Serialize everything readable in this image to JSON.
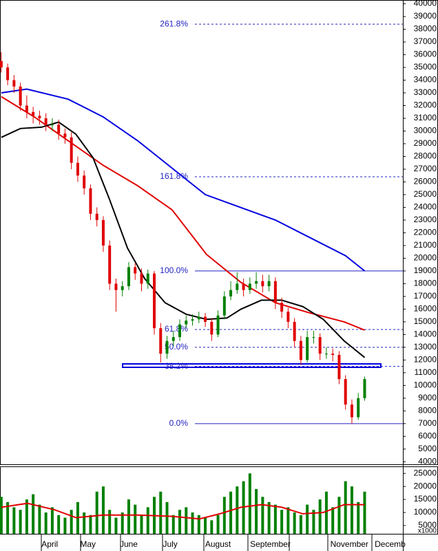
{
  "chart_data": [
    {
      "type": "candlestick",
      "x": [
        0,
        1,
        2,
        3,
        4,
        5,
        6,
        7,
        8,
        9,
        10,
        11,
        12,
        13,
        14,
        15,
        16,
        17,
        18,
        19,
        20,
        21,
        22,
        23,
        24,
        25,
        26,
        27,
        28,
        29,
        30,
        31,
        32,
        33,
        34,
        35,
        36,
        37,
        38,
        39,
        40,
        41,
        42,
        43,
        44,
        45,
        46,
        47,
        48,
        49,
        50,
        51,
        52,
        53,
        54,
        55,
        56,
        57
      ],
      "open": [
        35500,
        35000,
        34000,
        33500,
        32000,
        31500,
        31200,
        31000,
        30500,
        30500,
        29800,
        29500,
        27500,
        26500,
        25500,
        23500,
        23000,
        21000,
        18000,
        17500,
        17800,
        19300,
        18800,
        18000,
        18800,
        14500,
        12500,
        13500,
        13800,
        14800,
        15100,
        15200,
        15400,
        15000,
        14000,
        15500,
        17000,
        17500,
        18000,
        17500,
        18000,
        18200,
        17800,
        18200,
        16500,
        15800,
        15000,
        13500,
        12000,
        13800,
        13800,
        12500,
        12500,
        12400,
        10500,
        8500,
        7500,
        9000
      ],
      "high": [
        36200,
        35300,
        34400,
        33800,
        32800,
        31900,
        31600,
        31400,
        31000,
        30900,
        30200,
        29900,
        28000,
        26900,
        25800,
        24000,
        23300,
        21400,
        18400,
        18200,
        19700,
        19600,
        19200,
        19100,
        19000,
        14900,
        13900,
        14300,
        15200,
        15500,
        15600,
        15800,
        15700,
        15300,
        15900,
        17400,
        18200,
        18900,
        18400,
        18500,
        18900,
        18700,
        18700,
        18500,
        16900,
        16100,
        15300,
        13900,
        14300,
        14300,
        14100,
        13000,
        12900,
        12700,
        10800,
        8900,
        9400,
        10700
      ],
      "low": [
        34600,
        33600,
        33000,
        31600,
        31000,
        30600,
        30500,
        30000,
        30000,
        29300,
        29000,
        27000,
        26000,
        25000,
        23000,
        22500,
        20500,
        17500,
        15800,
        17000,
        17500,
        18300,
        17400,
        17600,
        14000,
        11800,
        12100,
        13100,
        13500,
        14500,
        14700,
        14900,
        14600,
        13500,
        13800,
        15200,
        16700,
        17200,
        17000,
        17200,
        17600,
        17300,
        17400,
        16000,
        15300,
        14500,
        13000,
        11600,
        11800,
        13300,
        12000,
        12100,
        11900,
        10100,
        8100,
        7000,
        7300,
        8800
      ],
      "close": [
        35000,
        34000,
        33500,
        32000,
        31500,
        31200,
        31000,
        30500,
        30500,
        29800,
        29500,
        27500,
        26500,
        25500,
        23500,
        23000,
        21000,
        18000,
        17500,
        17800,
        19300,
        18800,
        18000,
        18800,
        14500,
        12500,
        13500,
        13800,
        14800,
        15100,
        15200,
        15400,
        15000,
        14000,
        15500,
        17000,
        17500,
        18000,
        17500,
        18000,
        18200,
        17800,
        18200,
        16500,
        15800,
        15000,
        13500,
        12000,
        13800,
        13800,
        12500,
        12500,
        12400,
        10500,
        8500,
        7500,
        9000,
        10500
      ],
      "up_color": "#008000",
      "down_color": "#e00000",
      "lines": [
        {
          "color": "#0000e0",
          "x": [
            0,
            4,
            10.5,
            16,
            21.5,
            27,
            32,
            37.5,
            43,
            48.5,
            54,
            57
          ],
          "values": [
            33000,
            33300,
            32500,
            31100,
            29200,
            27000,
            25000,
            24000,
            23000,
            21600,
            20200,
            19000
          ]
        },
        {
          "color": "#e00000",
          "x": [
            0,
            5.2,
            10.6,
            16,
            21.4,
            26.8,
            32.2,
            37.6,
            43,
            48.4,
            53.8,
            57
          ],
          "values": [
            32700,
            31100,
            29200,
            27300,
            25700,
            23800,
            20300,
            18100,
            16500,
            15700,
            15000,
            14350
          ]
        },
        {
          "color": "#000000",
          "x": [
            0,
            3,
            6.3,
            9,
            11.7,
            14.4,
            17,
            19.8,
            22.5,
            25.7,
            29,
            32.2,
            35.4,
            37.6,
            40.8,
            44,
            47.3,
            50.5,
            53.8,
            57
          ],
          "values": [
            29500,
            30200,
            30300,
            30700,
            29750,
            27900,
            24600,
            20800,
            18400,
            16500,
            15600,
            15200,
            15300,
            16000,
            16700,
            16700,
            16200,
            15200,
            13500,
            12200
          ]
        }
      ],
      "levels": [
        {
          "label": "261.8%",
          "value": 38400,
          "style": "dashed"
        },
        {
          "label": "161.8%",
          "value": 26400,
          "style": "dashed"
        },
        {
          "label": "100.0%",
          "value": 19000,
          "style": "solid"
        },
        {
          "label": "61.8%",
          "value": 14400,
          "style": "dashed"
        },
        {
          "label": "50.0%",
          "value": 13000,
          "style": "dashed"
        },
        {
          "label": "38.2%",
          "value": 11500,
          "style": "dashed"
        },
        {
          "label": "0.0%",
          "value": 7000,
          "style": "solid"
        }
      ],
      "level_color": "#2020c0",
      "xlim": [
        -0.2,
        63
      ],
      "ylim": [
        3800,
        40300
      ],
      "yticks": [
        4000,
        5000,
        6000,
        7000,
        8000,
        9000,
        10000,
        11000,
        12000,
        13000,
        14000,
        15000,
        16000,
        17000,
        18000,
        19000,
        20000,
        21000,
        22000,
        23000,
        24000,
        25000,
        26000,
        27000,
        28000,
        29000,
        30000,
        31000,
        32000,
        33000,
        34000,
        35000,
        36000,
        37000,
        38000,
        39000,
        40000
      ]
    },
    {
      "type": "bar",
      "x": [
        0,
        1,
        2,
        3,
        4,
        5,
        6,
        7,
        8,
        9,
        10,
        11,
        12,
        13,
        14,
        15,
        16,
        17,
        18,
        19,
        20,
        21,
        22,
        23,
        24,
        25,
        26,
        27,
        28,
        29,
        30,
        31,
        32,
        33,
        34,
        35,
        36,
        37,
        38,
        39,
        40,
        41,
        42,
        43,
        44,
        45,
        46,
        47,
        48,
        49,
        50,
        51,
        52,
        53,
        54,
        55,
        56,
        57
      ],
      "values": [
        16000,
        14000,
        12000,
        11000,
        15000,
        17000,
        13000,
        10000,
        12000,
        9000,
        8000,
        11000,
        14000,
        10000,
        9000,
        18000,
        20000,
        11000,
        8000,
        10000,
        15000,
        13000,
        9000,
        12000,
        16000,
        18000,
        14000,
        9000,
        11000,
        12000,
        10000,
        9000,
        8000,
        7000,
        9000,
        16000,
        18000,
        20000,
        22000,
        25000,
        19000,
        16000,
        14000,
        13000,
        11000,
        12000,
        10000,
        9000,
        13000,
        11000,
        15000,
        18000,
        12000,
        16000,
        22000,
        20000,
        14000,
        18000
      ],
      "color": "#008000",
      "average": {
        "color": "#e00000",
        "x": [
          0,
          4.1,
          8.4,
          11.7,
          16,
          21.4,
          26.8,
          31.1,
          34.3,
          37.6,
          40.8,
          44,
          47.3,
          50.5,
          53.8,
          57
        ],
        "values": [
          12000,
          13500,
          11000,
          8000,
          9000,
          9000,
          8500,
          7500,
          9500,
          12000,
          13000,
          12000,
          9500,
          10000,
          13000,
          13000
        ]
      },
      "unit": "x1000",
      "xlim": [
        -0.2,
        63
      ],
      "ylim": [
        1800,
        27700
      ],
      "yticks": [
        5000,
        10000,
        15000,
        20000,
        25000
      ],
      "xticks": [
        {
          "value": 7.6,
          "label": "April"
        },
        {
          "value": 13.6,
          "label": "May"
        },
        {
          "value": 20,
          "label": "June"
        },
        {
          "value": 26.5,
          "label": "July"
        },
        {
          "value": 34,
          "label": "August"
        },
        {
          "value": 42.2,
          "label": "September"
        },
        {
          "value": 54.6,
          "label": "November"
        },
        {
          "value": 61,
          "label": "Decemb"
        }
      ]
    }
  ]
}
